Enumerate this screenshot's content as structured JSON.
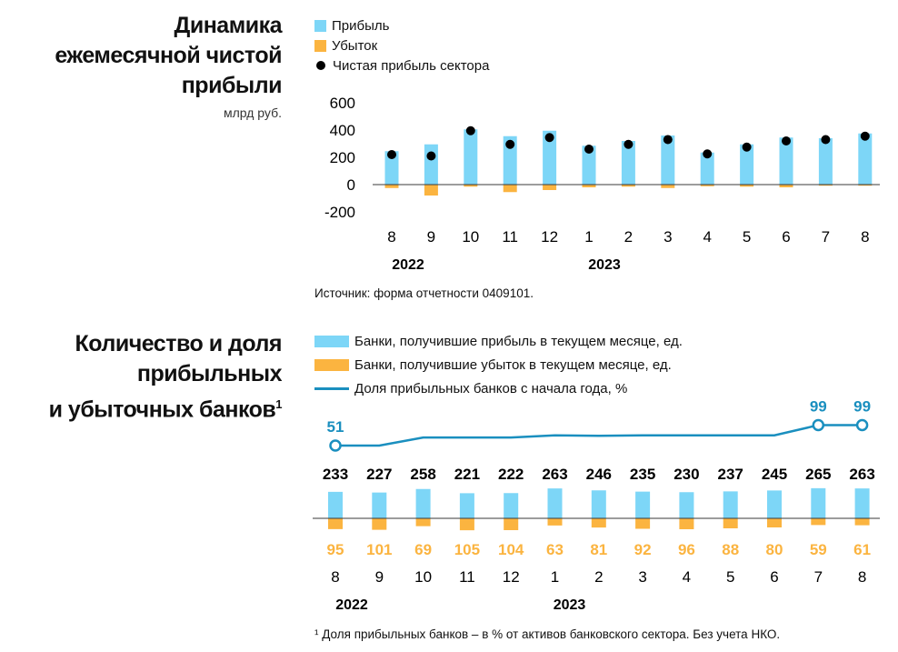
{
  "colors": {
    "profit": "#7dd6f7",
    "loss": "#fbb440",
    "net": "#000000",
    "share_line": "#1a8fbf",
    "zero_line": "#3a3a3a"
  },
  "chart1": {
    "title_lines": [
      "Динамика",
      "ежемесячной чистой",
      "прибыли"
    ],
    "unit": "млрд руб.",
    "legend": [
      "Прибыль",
      "Убыток",
      "Чистая прибыль сектора"
    ],
    "source": "Источник: форма отчетности 0409101."
  },
  "chart2": {
    "title_lines": [
      "Количество и доля",
      "прибыльных",
      "и убыточных банков"
    ],
    "title_sup": "1",
    "legend": [
      "Банки, получившие прибыль в текущем месяце, ед.",
      "Банки, получившие убыток в текущем месяце, ед.",
      "Доля прибыльных банков с начала года, %"
    ],
    "footnote": "¹ Доля прибыльных банков – в % от активов банковского сектора. Без учета НКО."
  },
  "chart_data": [
    {
      "type": "bar",
      "title": "Динамика ежемесячной чистой прибыли",
      "ylabel": "млрд руб.",
      "ylim": [
        -200,
        600
      ],
      "yticks": [
        "600",
        "400",
        "200",
        "0",
        "-200"
      ],
      "categories": [
        "8",
        "9",
        "10",
        "11",
        "12",
        "1",
        "2",
        "3",
        "4",
        "5",
        "6",
        "7",
        "8"
      ],
      "year_labels": [
        {
          "label": "2022",
          "at": 0
        },
        {
          "label": "2023",
          "at": 5
        }
      ],
      "series": [
        {
          "name": "Прибыль",
          "values": [
            245,
            295,
            405,
            355,
            395,
            285,
            320,
            360,
            235,
            295,
            345,
            340,
            375
          ]
        },
        {
          "name": "Убыток",
          "values": [
            -25,
            -80,
            -15,
            -55,
            -40,
            -20,
            -15,
            -25,
            -12,
            -15,
            -20,
            -8,
            -8
          ]
        },
        {
          "name": "Чистая прибыль сектора",
          "values": [
            220,
            210,
            395,
            295,
            345,
            260,
            295,
            330,
            225,
            275,
            320,
            330,
            355
          ]
        }
      ],
      "legend_position": "top-left",
      "grid": false
    },
    {
      "type": "bar",
      "title": "Количество и доля прибыльных и убыточных банков",
      "categories": [
        "8",
        "9",
        "10",
        "11",
        "12",
        "1",
        "2",
        "3",
        "4",
        "5",
        "6",
        "7",
        "8"
      ],
      "year_labels": [
        {
          "label": "2022",
          "at": 0
        },
        {
          "label": "2023",
          "at": 5
        }
      ],
      "series": [
        {
          "name": "Банки, получившие прибыль в текущем месяце, ед.",
          "values": [
            233,
            227,
            258,
            221,
            222,
            263,
            246,
            235,
            230,
            237,
            245,
            265,
            263
          ],
          "labels": [
            "233",
            "227",
            "258",
            "221",
            "222",
            "263",
            "246",
            "235",
            "230",
            "237",
            "245",
            "265",
            "263"
          ]
        },
        {
          "name": "Банки, получившие убыток в текущем месяце, ед.",
          "values": [
            95,
            101,
            69,
            105,
            104,
            63,
            81,
            92,
            96,
            88,
            80,
            59,
            61
          ],
          "labels": [
            "95",
            "101",
            "69",
            "105",
            "104",
            "63",
            "81",
            "92",
            "96",
            "88",
            "80",
            "59",
            "61"
          ]
        },
        {
          "name": "Доля прибыльных банков с начала года, %",
          "values": [
            51,
            51,
            70,
            70,
            70,
            75,
            74,
            75,
            75,
            75,
            75,
            99,
            99
          ],
          "point_labels": [
            {
              "index": 0,
              "label": "51"
            },
            {
              "index": 11,
              "label": "99"
            },
            {
              "index": 12,
              "label": "99"
            }
          ]
        }
      ],
      "legend_position": "top-left",
      "grid": false
    }
  ]
}
